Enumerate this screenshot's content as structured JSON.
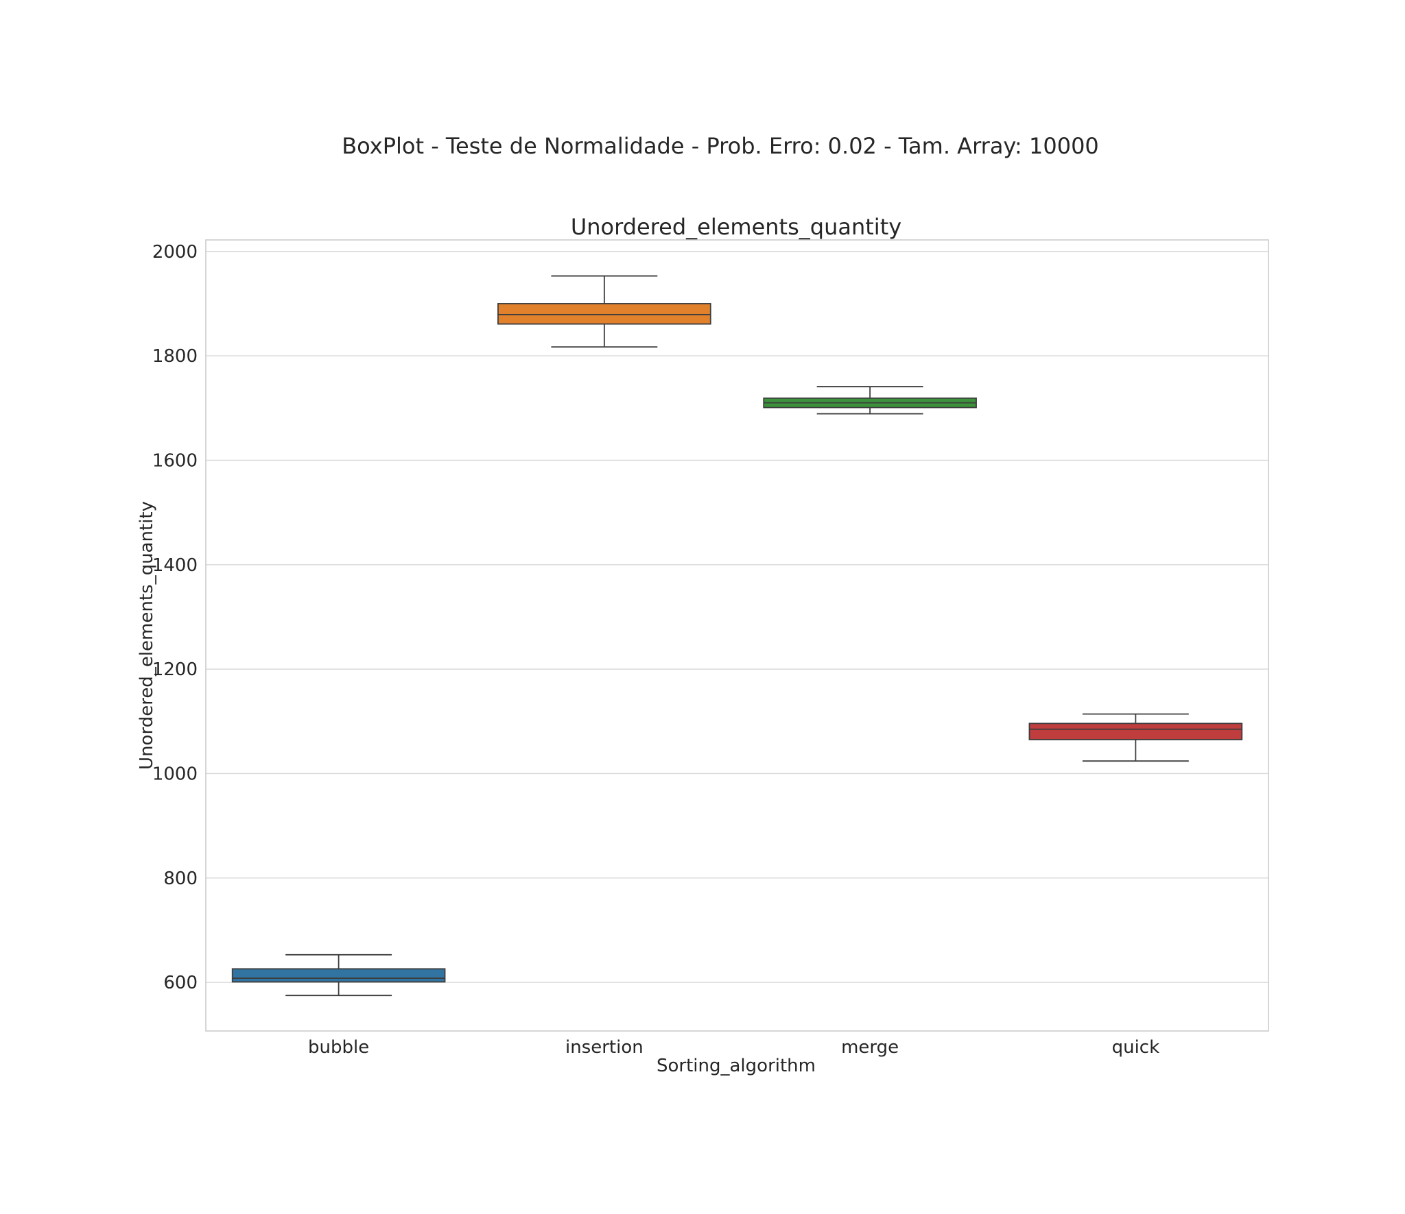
{
  "figure": {
    "suptitle": "BoxPlot - Teste de Normalidade - Prob. Erro: 0.02 - Tam. Array: 10000"
  },
  "chart_data": {
    "type": "box",
    "title": "Unordered_elements_quantity",
    "xlabel": "Sorting_algorithm",
    "ylabel": "Unordered_elements_quantity",
    "categories": [
      "bubble",
      "insertion",
      "merge",
      "quick"
    ],
    "ylim": [
      507,
      2022
    ],
    "yticks": [
      600,
      800,
      1000,
      1200,
      1400,
      1600,
      1800,
      2000
    ],
    "grid": "horizontal",
    "legend": "none",
    "boxes": [
      {
        "category": "bubble",
        "whislo": 575,
        "q1": 601,
        "med": 608,
        "q3": 626,
        "whishi": 653,
        "color": "#3274a1"
      },
      {
        "category": "insertion",
        "whislo": 1817,
        "q1": 1861,
        "med": 1879,
        "q3": 1900,
        "whishi": 1953,
        "color": "#e1812c"
      },
      {
        "category": "merge",
        "whislo": 1689,
        "q1": 1701,
        "med": 1710,
        "q3": 1719,
        "whishi": 1741,
        "color": "#3a923a"
      },
      {
        "category": "quick",
        "whislo": 1024,
        "q1": 1065,
        "med": 1085,
        "q3": 1096,
        "whishi": 1114,
        "color": "#c03d3e"
      }
    ]
  }
}
